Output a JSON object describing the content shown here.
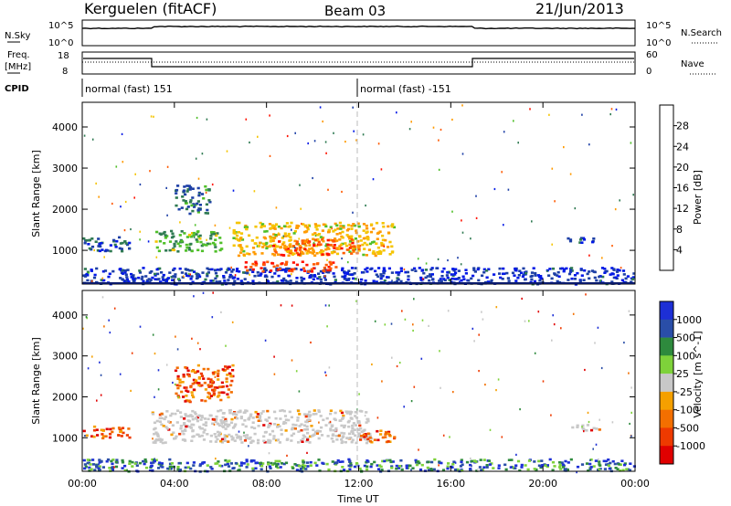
{
  "header": {
    "station": "Kerguelen (fitACF)",
    "beam": "Beam 03",
    "date": "21/Jun/2013"
  },
  "noise_panel": {
    "left_label": "N.Sky",
    "left_ticks": [
      "10^5",
      "10^0"
    ],
    "right_label": "N.Search",
    "right_ticks": [
      "10^5",
      "10^0"
    ]
  },
  "freq_panel": {
    "left_label_1": "Freq.",
    "left_label_2": "[MHz]",
    "left_ticks": [
      "18",
      "8"
    ],
    "right_label": "Nave",
    "right_ticks": [
      "60",
      "0"
    ]
  },
  "cpid": {
    "label": "CPID",
    "segments": [
      {
        "text": "normal (fast) 151",
        "start_hour": 0
      },
      {
        "text": "normal (fast) -151",
        "start_hour": 12
      }
    ]
  },
  "colors": {
    "power_scale": [
      "#0018e6",
      "#1d3fa6",
      "#2f7a52",
      "#4fbf29",
      "#f5c400",
      "#ff9a00",
      "#ff5a00",
      "#ff1200"
    ],
    "velocity_scale": [
      "#1d2fd6",
      "#2a4ea8",
      "#2e8a3d",
      "#7ed23a",
      "#c8c8c8",
      "#f5a000",
      "#f36f00",
      "#ee3a00",
      "#e00000"
    ],
    "ground_scatter": "#c8c8c8"
  },
  "chart_data": [
    {
      "type": "heatmap",
      "title": "",
      "ylabel": "Slant Range [km]",
      "xlabel": "",
      "xlim": [
        0,
        24
      ],
      "ylim": [
        180,
        4600
      ],
      "x_ticks": [
        0,
        4,
        8,
        12,
        16,
        20,
        24
      ],
      "y_ticks": [
        1000,
        2000,
        3000,
        4000
      ],
      "y_tick_labels": [
        "1000",
        "2000",
        "3000",
        "4000"
      ],
      "colorbar": {
        "label": "Power [dB]",
        "ticks": [
          "4",
          "8",
          "12",
          "16",
          "20",
          "24",
          "28"
        ],
        "range": [
          0,
          30
        ]
      },
      "regions": [
        {
          "t0": 0.0,
          "t1": 2.0,
          "r0": 1000,
          "r1": 1350,
          "value": 7
        },
        {
          "t0": 0.0,
          "t1": 24.0,
          "r0": 200,
          "r1": 600,
          "value": 4
        },
        {
          "t0": 3.0,
          "t1": 6.0,
          "r0": 1000,
          "r1": 1500,
          "value": 12
        },
        {
          "t0": 4.0,
          "t1": 5.5,
          "r0": 1900,
          "r1": 2600,
          "value": 8
        },
        {
          "t0": 6.5,
          "t1": 13.5,
          "r0": 900,
          "r1": 1700,
          "value": 18
        },
        {
          "t0": 7.0,
          "t1": 11.0,
          "r0": 500,
          "r1": 750,
          "value": 27
        },
        {
          "t0": 8.0,
          "t1": 12.0,
          "r0": 900,
          "r1": 1300,
          "value": 24
        },
        {
          "t0": 21.0,
          "t1": 22.5,
          "r0": 1200,
          "r1": 1350,
          "value": 6
        }
      ]
    },
    {
      "type": "heatmap",
      "title": "",
      "ylabel": "Slant Range [km]",
      "xlabel": "Time UT",
      "xlim": [
        0,
        24
      ],
      "ylim": [
        180,
        4600
      ],
      "x_ticks": [
        0,
        4,
        8,
        12,
        16,
        20,
        24
      ],
      "x_tick_labels": [
        "00:00",
        "04:00",
        "08:00",
        "12:00",
        "16:00",
        "20:00",
        "00:00"
      ],
      "y_ticks": [
        1000,
        2000,
        3000,
        4000
      ],
      "y_tick_labels": [
        "1000",
        "2000",
        "3000",
        "4000"
      ],
      "colorbar": {
        "label": "Velocity [m s^-1]",
        "ticks": [
          "1000",
          "500",
          "100",
          "25",
          "-25",
          "-100",
          "-500",
          "-1000"
        ]
      },
      "regions": [
        {
          "t0": 0.0,
          "t1": 2.0,
          "r0": 1000,
          "r1": 1300,
          "value": -100
        },
        {
          "t0": 3.0,
          "t1": 12.5,
          "r0": 900,
          "r1": 1700,
          "value": 0
        },
        {
          "t0": 4.0,
          "t1": 6.5,
          "r0": 1900,
          "r1": 2800,
          "value": -100
        },
        {
          "t0": 12.0,
          "t1": 13.5,
          "r0": 900,
          "r1": 1200,
          "value": -150
        },
        {
          "t0": 0.0,
          "t1": 24.0,
          "r0": 200,
          "r1": 500,
          "value": 100
        },
        {
          "t0": 21.0,
          "t1": 22.5,
          "r0": 1200,
          "r1": 1350,
          "value": 0
        }
      ]
    }
  ]
}
